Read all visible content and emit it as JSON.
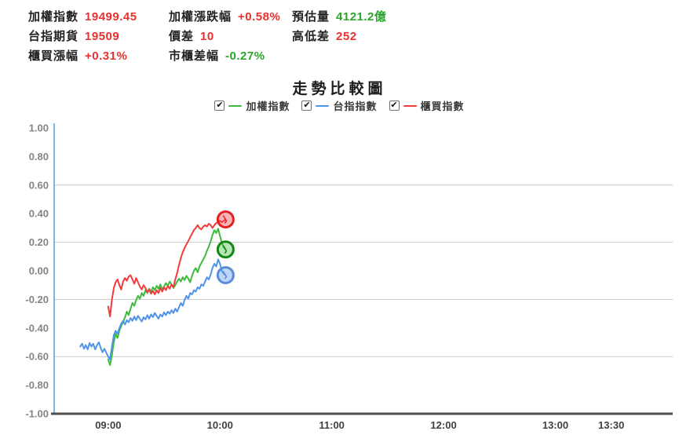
{
  "header": {
    "label_color": "#222222",
    "up_color": "#e8312f",
    "down_color": "#2ca42c",
    "cells": [
      {
        "label": "加權指數",
        "value": "19499.45",
        "color": "#e8312f"
      },
      {
        "label": "加權漲跌幅",
        "value": "+0.58%",
        "color": "#e8312f"
      },
      {
        "label": "預估量",
        "value": "4121.2億",
        "color": "#2ca42c"
      },
      {
        "label": "台指期貨",
        "value": "19509",
        "color": "#e8312f"
      },
      {
        "label": "價差",
        "value": "10",
        "color": "#e8312f"
      },
      {
        "label": "高低差",
        "value": "252",
        "color": "#e8312f"
      },
      {
        "label": "櫃買漲幅",
        "value": "+0.31%",
        "color": "#e8312f"
      },
      {
        "label": "市櫃差幅",
        "value": "-0.27%",
        "color": "#2ca42c"
      }
    ]
  },
  "icons": {
    "checkbox_check": "✔"
  },
  "chart_data": {
    "type": "line",
    "title": "走勢比較圖",
    "ylim": [
      -1.0,
      1.0
    ],
    "xlim_minutes": [
      -29,
      303
    ],
    "yticks": [
      "1.00",
      "0.80",
      "0.60",
      "0.40",
      "0.20",
      "0.00",
      "-0.20",
      "-0.40",
      "-0.60",
      "-0.80",
      "-1.00"
    ],
    "gridlines": [
      0.6,
      0.2,
      -0.2,
      -0.6
    ],
    "xticks": [
      {
        "label": "09:00",
        "t": 0
      },
      {
        "label": "10:00",
        "t": 60
      },
      {
        "label": "11:00",
        "t": 120
      },
      {
        "label": "12:00",
        "t": 180
      },
      {
        "label": "13:00",
        "t": 240
      },
      {
        "label": "13:30",
        "t": 270
      }
    ],
    "colors": {
      "grid": "#c9c9c9",
      "y_axis": "#7ab6e8",
      "x_axis": "#4d4d4d",
      "y_tick_text": "#848484",
      "x_tick_text": "#3f3f3f"
    },
    "legend_position": "top-center",
    "legend_checked": [
      true,
      true,
      true
    ],
    "series": [
      {
        "name": "加權指數",
        "id": "weighted-index",
        "color": "#3fba3f",
        "marker_stroke": "#128712",
        "last_value": 0.15,
        "points": [
          [
            0,
            -0.62
          ],
          [
            1,
            -0.66
          ],
          [
            2,
            -0.59
          ],
          [
            3,
            -0.5
          ],
          [
            4,
            -0.44
          ],
          [
            5,
            -0.47
          ],
          [
            6,
            -0.42
          ],
          [
            7,
            -0.385
          ],
          [
            8,
            -0.36
          ],
          [
            9,
            -0.325
          ],
          [
            10,
            -0.285
          ],
          [
            11,
            -0.31
          ],
          [
            12,
            -0.265
          ],
          [
            13,
            -0.225
          ],
          [
            14,
            -0.245
          ],
          [
            15,
            -0.205
          ],
          [
            16,
            -0.175
          ],
          [
            17,
            -0.195
          ],
          [
            18,
            -0.155
          ],
          [
            19,
            -0.175
          ],
          [
            20,
            -0.135
          ],
          [
            21,
            -0.155
          ],
          [
            22,
            -0.125
          ],
          [
            23,
            -0.145
          ],
          [
            24,
            -0.115
          ],
          [
            25,
            -0.135
          ],
          [
            26,
            -0.105
          ],
          [
            27,
            -0.125
          ],
          [
            28,
            -0.095
          ],
          [
            29,
            -0.13
          ],
          [
            30,
            -0.11
          ],
          [
            31,
            -0.085
          ],
          [
            32,
            -0.105
          ],
          [
            33,
            -0.075
          ],
          [
            34,
            -0.095
          ],
          [
            35,
            -0.12
          ],
          [
            36,
            -0.1
          ],
          [
            37,
            -0.075
          ],
          [
            38,
            -0.055
          ],
          [
            39,
            -0.075
          ],
          [
            40,
            -0.045
          ],
          [
            41,
            -0.065
          ],
          [
            42,
            -0.035
          ],
          [
            43,
            -0.055
          ],
          [
            44,
            -0.08
          ],
          [
            45,
            -0.035
          ],
          [
            46,
            0.0
          ],
          [
            47,
            0.02
          ],
          [
            48,
            -0.01
          ],
          [
            49,
            0.03
          ],
          [
            50,
            0.055
          ],
          [
            51,
            0.08
          ],
          [
            52,
            0.105
          ],
          [
            53,
            0.14
          ],
          [
            54,
            0.17
          ],
          [
            55,
            0.205
          ],
          [
            56,
            0.25
          ],
          [
            57,
            0.285
          ],
          [
            58,
            0.265
          ],
          [
            59,
            0.295
          ],
          [
            60,
            0.245
          ],
          [
            61,
            0.195
          ],
          [
            62,
            0.165
          ],
          [
            63,
            0.15
          ]
        ]
      },
      {
        "name": "台指指數",
        "id": "taiex-futures-index",
        "color": "#4f94e8",
        "marker_stroke": "#5b8dd6",
        "last_value": -0.03,
        "points": [
          [
            -15,
            -0.53
          ],
          [
            -14,
            -0.51
          ],
          [
            -13,
            -0.545
          ],
          [
            -12,
            -0.52
          ],
          [
            -11,
            -0.55
          ],
          [
            -10,
            -0.505
          ],
          [
            -9,
            -0.53
          ],
          [
            -8,
            -0.51
          ],
          [
            -7,
            -0.55
          ],
          [
            -6,
            -0.52
          ],
          [
            -5,
            -0.5
          ],
          [
            -4,
            -0.54
          ],
          [
            -3,
            -0.57
          ],
          [
            -2,
            -0.545
          ],
          [
            -1,
            -0.575
          ],
          [
            0,
            -0.6
          ],
          [
            1,
            -0.62
          ],
          [
            2,
            -0.53
          ],
          [
            3,
            -0.45
          ],
          [
            4,
            -0.42
          ],
          [
            5,
            -0.44
          ],
          [
            6,
            -0.4
          ],
          [
            7,
            -0.37
          ],
          [
            8,
            -0.35
          ],
          [
            9,
            -0.375
          ],
          [
            10,
            -0.345
          ],
          [
            11,
            -0.36
          ],
          [
            12,
            -0.33
          ],
          [
            13,
            -0.35
          ],
          [
            14,
            -0.32
          ],
          [
            15,
            -0.345
          ],
          [
            16,
            -0.315
          ],
          [
            17,
            -0.335
          ],
          [
            18,
            -0.355
          ],
          [
            19,
            -0.325
          ],
          [
            20,
            -0.34
          ],
          [
            21,
            -0.31
          ],
          [
            22,
            -0.335
          ],
          [
            23,
            -0.305
          ],
          [
            24,
            -0.325
          ],
          [
            25,
            -0.295
          ],
          [
            26,
            -0.315
          ],
          [
            27,
            -0.335
          ],
          [
            28,
            -0.305
          ],
          [
            29,
            -0.32
          ],
          [
            30,
            -0.29
          ],
          [
            31,
            -0.31
          ],
          [
            32,
            -0.285
          ],
          [
            33,
            -0.3
          ],
          [
            34,
            -0.275
          ],
          [
            35,
            -0.295
          ],
          [
            36,
            -0.265
          ],
          [
            37,
            -0.285
          ],
          [
            38,
            -0.255
          ],
          [
            39,
            -0.225
          ],
          [
            40,
            -0.245
          ],
          [
            41,
            -0.205
          ],
          [
            42,
            -0.175
          ],
          [
            43,
            -0.195
          ],
          [
            44,
            -0.155
          ],
          [
            45,
            -0.165
          ],
          [
            46,
            -0.135
          ],
          [
            47,
            -0.145
          ],
          [
            48,
            -0.115
          ],
          [
            49,
            -0.125
          ],
          [
            50,
            -0.095
          ],
          [
            51,
            -0.105
          ],
          [
            52,
            -0.075
          ],
          [
            53,
            -0.045
          ],
          [
            54,
            -0.06
          ],
          [
            55,
            -0.025
          ],
          [
            56,
            0.02
          ],
          [
            57,
            0.05
          ],
          [
            58,
            0.03
          ],
          [
            59,
            0.08
          ],
          [
            60,
            0.05
          ],
          [
            61,
            0.0
          ],
          [
            62,
            -0.02
          ],
          [
            63,
            -0.03
          ]
        ]
      },
      {
        "name": "櫃買指數",
        "id": "otc-index",
        "color": "#f03c3c",
        "marker_stroke": "#e42222",
        "last_value": 0.36,
        "points": [
          [
            0,
            -0.25
          ],
          [
            1,
            -0.32
          ],
          [
            2,
            -0.2
          ],
          [
            3,
            -0.12
          ],
          [
            4,
            -0.08
          ],
          [
            5,
            -0.06
          ],
          [
            6,
            -0.1
          ],
          [
            7,
            -0.13
          ],
          [
            8,
            -0.075
          ],
          [
            9,
            -0.05
          ],
          [
            10,
            -0.07
          ],
          [
            11,
            -0.04
          ],
          [
            12,
            -0.03
          ],
          [
            13,
            -0.06
          ],
          [
            14,
            -0.09
          ],
          [
            15,
            -0.05
          ],
          [
            16,
            -0.08
          ],
          [
            17,
            -0.11
          ],
          [
            18,
            -0.13
          ],
          [
            19,
            -0.1
          ],
          [
            20,
            -0.12
          ],
          [
            21,
            -0.15
          ],
          [
            22,
            -0.13
          ],
          [
            23,
            -0.16
          ],
          [
            24,
            -0.14
          ],
          [
            25,
            -0.165
          ],
          [
            26,
            -0.135
          ],
          [
            27,
            -0.155
          ],
          [
            28,
            -0.12
          ],
          [
            29,
            -0.145
          ],
          [
            30,
            -0.115
          ],
          [
            31,
            -0.135
          ],
          [
            32,
            -0.105
          ],
          [
            33,
            -0.125
          ],
          [
            34,
            -0.095
          ],
          [
            35,
            -0.115
          ],
          [
            36,
            -0.06
          ],
          [
            37,
            -0.015
          ],
          [
            38,
            0.04
          ],
          [
            39,
            0.09
          ],
          [
            40,
            0.13
          ],
          [
            41,
            0.16
          ],
          [
            42,
            0.185
          ],
          [
            43,
            0.21
          ],
          [
            44,
            0.235
          ],
          [
            45,
            0.26
          ],
          [
            46,
            0.285
          ],
          [
            47,
            0.3
          ],
          [
            48,
            0.32
          ],
          [
            49,
            0.3
          ],
          [
            50,
            0.29
          ],
          [
            51,
            0.31
          ],
          [
            52,
            0.32
          ],
          [
            53,
            0.31
          ],
          [
            54,
            0.33
          ],
          [
            55,
            0.32
          ],
          [
            56,
            0.3
          ],
          [
            57,
            0.32
          ],
          [
            58,
            0.335
          ],
          [
            59,
            0.34
          ],
          [
            60,
            0.35
          ],
          [
            61,
            0.34
          ],
          [
            62,
            0.35
          ],
          [
            63,
            0.36
          ]
        ]
      }
    ]
  }
}
